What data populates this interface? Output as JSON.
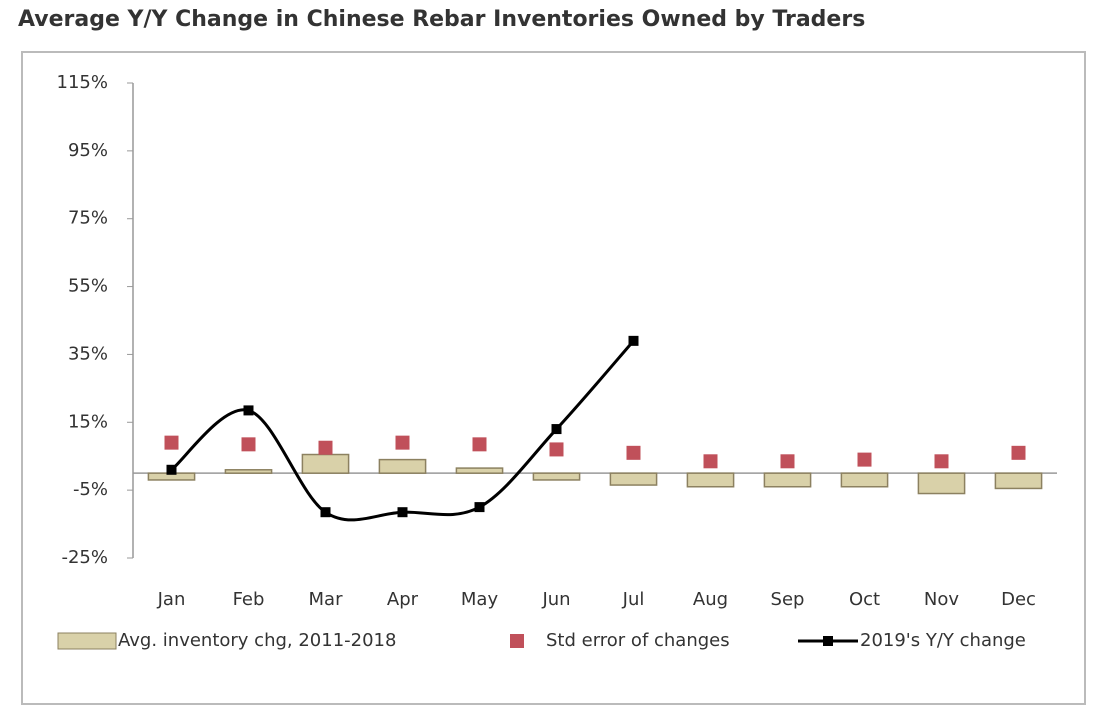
{
  "chart_data": {
    "type": "combo",
    "title": "Average Y/Y Change in Chinese Rebar Inventories Owned by Traders",
    "categories": [
      "Jan",
      "Feb",
      "Mar",
      "Apr",
      "May",
      "Jun",
      "Jul",
      "Aug",
      "Sep",
      "Oct",
      "Nov",
      "Dec"
    ],
    "series": [
      {
        "name": "Avg. inventory chg, 2011-2018",
        "type": "bar",
        "color": "#d9d1a9",
        "values": [
          -2,
          1,
          5.5,
          4,
          1.5,
          -2,
          -3.5,
          -4,
          -4,
          -4,
          -6,
          -4.5
        ]
      },
      {
        "name": "Std error of changes",
        "type": "scatter",
        "color": "#c0505a",
        "values": [
          9,
          8.5,
          7.5,
          9,
          8.5,
          7,
          6,
          3.5,
          3.5,
          4,
          3.5,
          6
        ]
      },
      {
        "name": "2019's Y/Y change",
        "type": "line",
        "color": "#000000",
        "values": [
          1,
          18.5,
          -11.5,
          -11.5,
          -10,
          13,
          39,
          null,
          null,
          null,
          null,
          null
        ]
      }
    ],
    "ylim": [
      -25,
      115
    ],
    "yticks": [
      {
        "value": -25,
        "label": "-25%"
      },
      {
        "value": -5,
        "label": "-5%"
      },
      {
        "value": 15,
        "label": "15%"
      },
      {
        "value": 35,
        "label": "35%"
      },
      {
        "value": 55,
        "label": "55%"
      },
      {
        "value": 75,
        "label": "75%"
      },
      {
        "value": 95,
        "label": "95%"
      },
      {
        "value": 115,
        "label": "115%"
      }
    ],
    "grid": false
  }
}
